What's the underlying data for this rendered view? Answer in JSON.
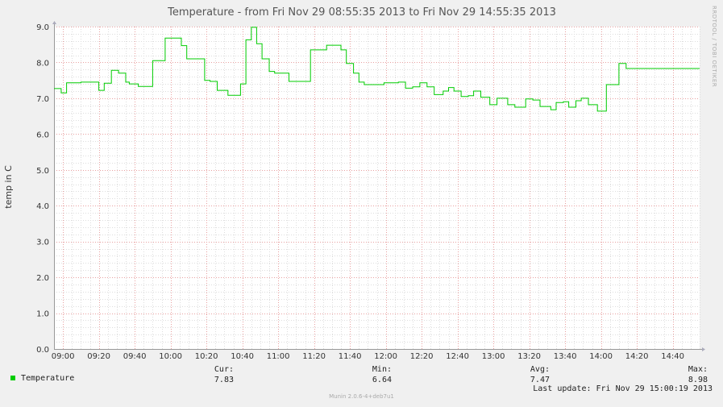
{
  "chart_data": {
    "type": "line",
    "title": "Temperature - from Fri Nov 29 08:55:35 2013 to Fri Nov 29 14:55:35 2013",
    "ylabel": "temp in C",
    "ylim": [
      0,
      9
    ],
    "yticks": [
      0,
      1,
      2,
      3,
      4,
      5,
      6,
      7,
      8,
      9
    ],
    "yticklabels": [
      "0.0",
      "1.0",
      "2.0",
      "3.0",
      "4.0",
      "5.0",
      "6.0",
      "7.0",
      "8.0",
      "9.0"
    ],
    "x_minutes_range": [
      "08:55",
      "14:55"
    ],
    "xticks": [
      "09:00",
      "09:20",
      "09:40",
      "10:00",
      "10:20",
      "10:40",
      "11:00",
      "11:20",
      "11:40",
      "12:00",
      "12:20",
      "12:40",
      "13:00",
      "13:20",
      "13:40",
      "14:00",
      "14:20",
      "14:40"
    ],
    "grid": true,
    "series": [
      {
        "name": "Temperature",
        "color": "#00cc00",
        "step": "post",
        "x": [
          "08:55",
          "08:59",
          "09:02",
          "09:10",
          "09:15",
          "09:20",
          "09:23",
          "09:27",
          "09:31",
          "09:35",
          "09:37",
          "09:42",
          "09:45",
          "09:50",
          "09:57",
          "10:00",
          "10:06",
          "10:09",
          "10:14",
          "10:19",
          "10:22",
          "10:26",
          "10:32",
          "10:35",
          "10:39",
          "10:42",
          "10:45",
          "10:48",
          "10:51",
          "10:55",
          "10:58",
          "11:00",
          "11:06",
          "11:09",
          "11:12",
          "11:18",
          "11:22",
          "11:27",
          "11:35",
          "11:38",
          "11:42",
          "11:45",
          "11:48",
          "11:53",
          "11:59",
          "12:07",
          "12:11",
          "12:15",
          "12:19",
          "12:23",
          "12:27",
          "12:32",
          "12:35",
          "12:38",
          "12:42",
          "12:46",
          "12:49",
          "12:53",
          "12:58",
          "13:02",
          "13:05",
          "13:08",
          "13:12",
          "13:18",
          "13:22",
          "13:26",
          "13:32",
          "13:35",
          "13:39",
          "13:42",
          "13:46",
          "13:49",
          "13:53",
          "13:58",
          "14:03",
          "14:07",
          "14:10",
          "14:14",
          "14:19",
          "14:22",
          "14:27",
          "14:32",
          "14:36",
          "14:40",
          "14:45",
          "14:48",
          "14:53",
          "14:55"
        ],
        "y": [
          7.27,
          7.15,
          7.43,
          7.45,
          7.45,
          7.22,
          7.42,
          7.78,
          7.7,
          7.45,
          7.4,
          7.33,
          7.33,
          8.05,
          8.68,
          8.68,
          8.47,
          8.1,
          8.1,
          7.5,
          7.47,
          7.22,
          7.08,
          7.08,
          7.4,
          8.63,
          8.98,
          8.52,
          8.1,
          7.75,
          7.7,
          7.7,
          7.47,
          7.47,
          7.47,
          8.35,
          8.35,
          8.48,
          8.35,
          7.97,
          7.7,
          7.45,
          7.38,
          7.38,
          7.43,
          7.45,
          7.28,
          7.32,
          7.43,
          7.32,
          7.1,
          7.2,
          7.3,
          7.2,
          7.05,
          7.07,
          7.2,
          7.03,
          6.82,
          7.0,
          7.0,
          6.82,
          6.75,
          6.98,
          6.95,
          6.77,
          6.68,
          6.88,
          6.9,
          6.75,
          6.93,
          7.0,
          6.82,
          6.64,
          7.38,
          7.38,
          7.97,
          7.83,
          7.83,
          7.83,
          7.83,
          7.83,
          7.83,
          7.83,
          7.83,
          7.83,
          7.83,
          7.83
        ]
      }
    ]
  },
  "side_label": "RRDTOOL / TOBI OETIKER",
  "legend": {
    "series_name": "Temperature",
    "swatch_color": "#00cc00",
    "cur_label": "Cur:",
    "cur_value": "7.83",
    "min_label": "Min:",
    "min_value": "6.64",
    "avg_label": "Avg:",
    "avg_value": "7.47",
    "max_label": "Max:",
    "max_value": "8.98",
    "last_update": "Last update: Fri Nov 29 15:00:19 2013"
  },
  "footer": "Munin 2.0.6-4+deb7u1"
}
